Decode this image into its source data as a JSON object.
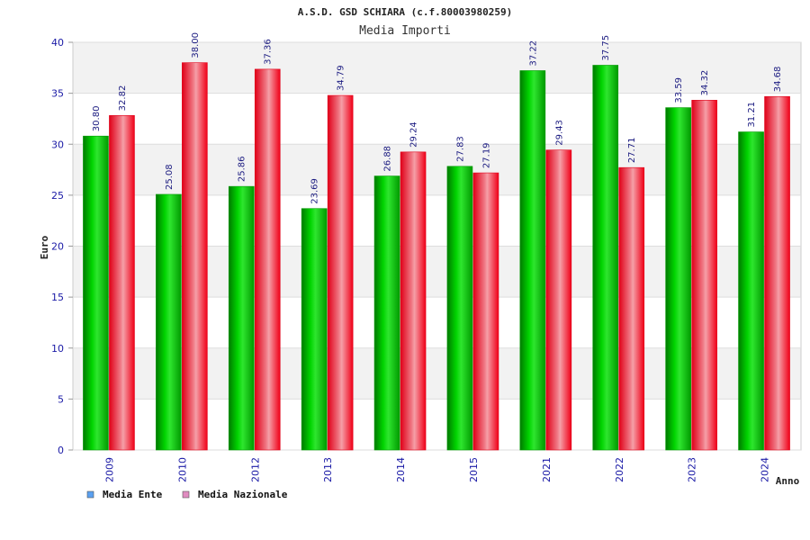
{
  "chart_data": {
    "type": "bar",
    "title": "A.S.D. GSD SCHIARA (c.f.80003980259)",
    "subtitle": "Media Importi",
    "xlabel": "Anno",
    "ylabel": "Euro",
    "ylim": [
      0,
      40
    ],
    "yticks": [
      "0",
      "5",
      "10",
      "15",
      "20",
      "25",
      "30",
      "35",
      "40"
    ],
    "categories": [
      "2009",
      "2010",
      "2012",
      "2013",
      "2014",
      "2015",
      "2021",
      "2022",
      "2023",
      "2024"
    ],
    "series": [
      {
        "name": "Media Ente",
        "color": "#00b000",
        "legend_color": "#5aa0f0",
        "values": [
          30.8,
          25.08,
          25.86,
          23.69,
          26.88,
          27.83,
          37.22,
          37.75,
          33.59,
          31.21
        ],
        "labels": [
          "30.80",
          "25.08",
          "25.86",
          "23.69",
          "26.88",
          "27.83",
          "37.22",
          "37.75",
          "33.59",
          "31.21"
        ]
      },
      {
        "name": "Media Nazionale",
        "color": "#f00018",
        "legend_color": "#e08cc0",
        "values": [
          32.82,
          38.0,
          37.36,
          34.79,
          29.24,
          27.19,
          29.43,
          27.71,
          34.32,
          34.68
        ],
        "labels": [
          "32.82",
          "38.00",
          "37.36",
          "34.79",
          "29.24",
          "27.19",
          "29.43",
          "27.71",
          "34.32",
          "34.68"
        ]
      }
    ],
    "grid": true,
    "legend_position": "bottom-left"
  }
}
